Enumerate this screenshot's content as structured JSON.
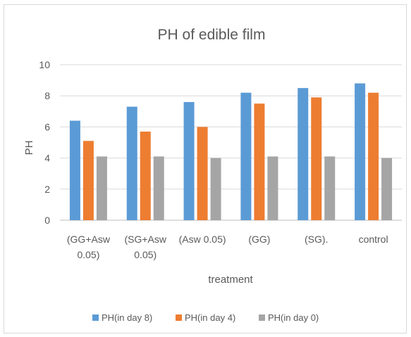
{
  "chart_data": {
    "type": "bar",
    "title": "PH of edible film",
    "xlabel": "treatment",
    "ylabel": "PH",
    "ylim": [
      0,
      10
    ],
    "yticks": [
      0,
      2,
      4,
      6,
      8,
      10
    ],
    "grid": true,
    "legend_position": "bottom",
    "categories": [
      [
        "(GG+Asw",
        "0.05)"
      ],
      [
        "(SG+Asw",
        "0.05)"
      ],
      [
        "(Asw 0.05)"
      ],
      [
        "(GG)"
      ],
      [
        "(SG)."
      ],
      [
        "control"
      ]
    ],
    "series": [
      {
        "name": "PH(in day 8)",
        "color": "#5b9bd5",
        "values": [
          6.4,
          7.3,
          7.6,
          8.2,
          8.5,
          8.8
        ]
      },
      {
        "name": "PH(in day 4)",
        "color": "#ed7d31",
        "values": [
          5.1,
          5.7,
          6.0,
          7.5,
          7.9,
          8.2
        ]
      },
      {
        "name": "PH(in day 0)",
        "color": "#a5a5a5",
        "values": [
          4.1,
          4.1,
          4.0,
          4.1,
          4.1,
          4.0
        ]
      }
    ],
    "colors": {
      "grid": "#d9d9d9",
      "text": "#595959",
      "axis": "#bfbfbf"
    }
  }
}
